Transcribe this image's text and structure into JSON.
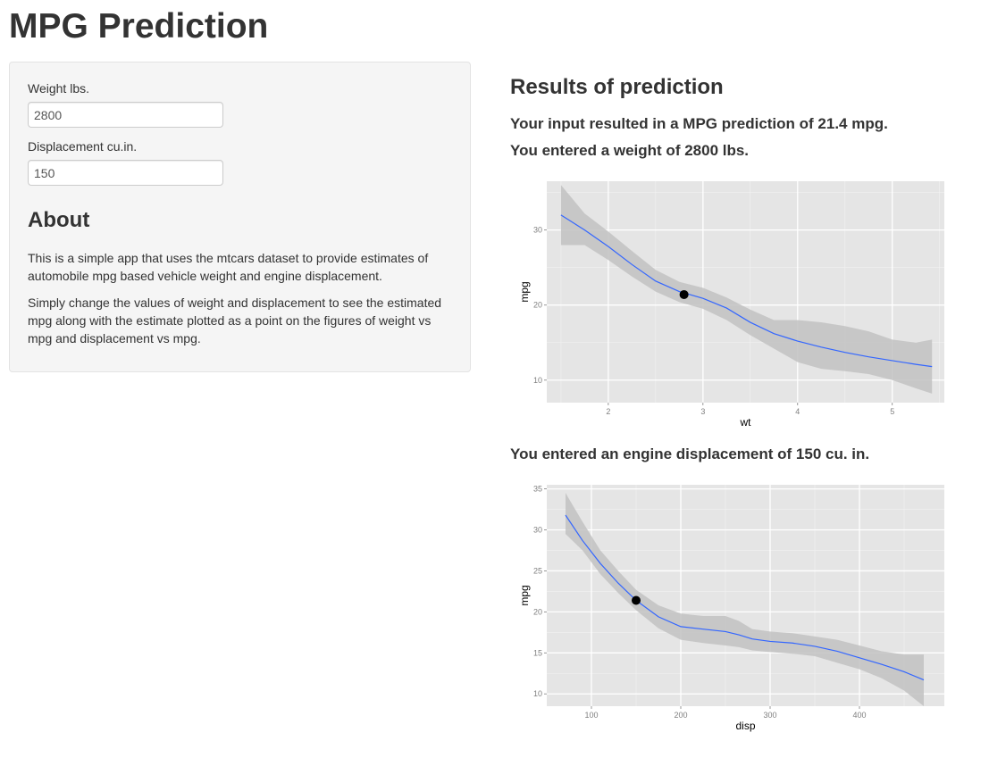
{
  "page": {
    "title": "MPG Prediction"
  },
  "sidebar": {
    "weight_label": "Weight lbs.",
    "weight_value": "2800",
    "displacement_label": "Displacement cu.in.",
    "displacement_value": "150",
    "about_heading": "About",
    "about_p1": "This is a simple app that uses the mtcars dataset to provide estimates of automobile mpg based vehicle weight and engine displacement.",
    "about_p2": "Simply change the values of weight and displacement to see the estimated mpg along with the estimate plotted as a point on the figures of weight vs mpg and displacement vs mpg."
  },
  "results": {
    "heading": "Results of prediction",
    "prediction_text": "Your input resulted in a MPG prediction of 21.4 mpg.",
    "weight_text": "You entered a weight of 2800 lbs.",
    "displacement_text": "You entered an engine displacement of 150 cu. in."
  },
  "colors": {
    "panel_bg": "#e5e5e5",
    "line": "#3366ff",
    "band": "#c2c2c2",
    "point": "#000000"
  },
  "chart_data": [
    {
      "type": "line",
      "xlabel": "wt",
      "ylabel": "mpg",
      "xlim": [
        1.35,
        5.55
      ],
      "ylim": [
        7.0,
        36.5
      ],
      "xticks": [
        2,
        3,
        4,
        5
      ],
      "yticks": [
        10,
        20,
        30
      ],
      "grid": true,
      "smooth": {
        "x": [
          1.5,
          1.75,
          2.0,
          2.25,
          2.5,
          2.75,
          3.0,
          3.25,
          3.5,
          3.75,
          4.0,
          4.25,
          4.5,
          4.75,
          5.0,
          5.25,
          5.42
        ],
        "y": [
          32.0,
          30.0,
          27.8,
          25.4,
          23.2,
          21.8,
          20.9,
          19.6,
          17.7,
          16.2,
          15.2,
          14.4,
          13.7,
          13.1,
          12.6,
          12.1,
          11.8
        ],
        "lower": [
          28.0,
          28.0,
          26.0,
          23.8,
          21.8,
          20.4,
          19.5,
          18.0,
          16.0,
          14.2,
          12.4,
          11.5,
          11.2,
          10.8,
          10.0,
          8.9,
          8.2
        ],
        "upper": [
          36.0,
          32.2,
          29.8,
          27.2,
          24.7,
          23.1,
          22.3,
          21.0,
          19.4,
          18.0,
          18.0,
          17.7,
          17.2,
          16.5,
          15.4,
          15.0,
          15.4
        ]
      },
      "point": {
        "x": 2.8,
        "y": 21.4
      }
    },
    {
      "type": "line",
      "xlabel": "disp",
      "ylabel": "mpg",
      "xlim": [
        50,
        495
      ],
      "ylim": [
        8.5,
        35.5
      ],
      "xticks": [
        100,
        200,
        300,
        400
      ],
      "yticks": [
        10,
        15,
        20,
        25,
        30,
        35
      ],
      "grid": true,
      "smooth": {
        "x": [
          71,
          90,
          110,
          130,
          150,
          175,
          200,
          225,
          250,
          265,
          280,
          300,
          325,
          350,
          375,
          400,
          425,
          450,
          472
        ],
        "y": [
          31.8,
          28.7,
          25.9,
          23.5,
          21.4,
          19.4,
          18.2,
          17.9,
          17.6,
          17.2,
          16.7,
          16.4,
          16.2,
          15.8,
          15.2,
          14.4,
          13.6,
          12.7,
          11.7
        ],
        "lower": [
          29.5,
          27.5,
          24.6,
          22.3,
          20.2,
          18.0,
          16.6,
          16.2,
          15.9,
          15.7,
          15.3,
          15.1,
          14.9,
          14.6,
          13.8,
          13.0,
          11.9,
          10.4,
          8.5
        ],
        "upper": [
          34.5,
          31.0,
          27.5,
          25.0,
          22.7,
          20.8,
          19.8,
          19.5,
          19.5,
          18.9,
          17.9,
          17.6,
          17.4,
          17.0,
          16.6,
          15.9,
          15.2,
          14.8,
          14.8
        ]
      },
      "point": {
        "x": 150,
        "y": 21.4
      }
    }
  ]
}
